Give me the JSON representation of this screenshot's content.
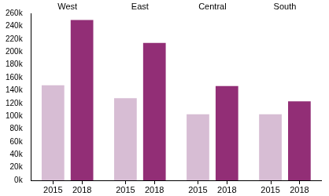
{
  "chart_data": {
    "type": "bar",
    "categories": [
      "West",
      "East",
      "Central",
      "South"
    ],
    "series": [
      {
        "name": "2015",
        "color": "#d7bdd4",
        "values": [
          148000,
          128000,
          103000,
          103000
        ]
      },
      {
        "name": "2018",
        "color": "#922e76",
        "values": [
          250000,
          214000,
          147000,
          123000
        ]
      }
    ],
    "ylim": [
      0,
      260000
    ],
    "yticks": [
      {
        "value": 0,
        "label": "0k"
      },
      {
        "value": 20000,
        "label": "20k"
      },
      {
        "value": 40000,
        "label": "40k"
      },
      {
        "value": 60000,
        "label": "60k"
      },
      {
        "value": 80000,
        "label": "80k"
      },
      {
        "value": 100000,
        "label": "100k"
      },
      {
        "value": 120000,
        "label": "120k"
      },
      {
        "value": 140000,
        "label": "140k"
      },
      {
        "value": 160000,
        "label": "160k"
      },
      {
        "value": 180000,
        "label": "180k"
      },
      {
        "value": 200000,
        "label": "200k"
      },
      {
        "value": 220000,
        "label": "220k"
      },
      {
        "value": 240000,
        "label": "240k"
      },
      {
        "value": 260000,
        "label": "260k"
      }
    ],
    "grid": false
  }
}
